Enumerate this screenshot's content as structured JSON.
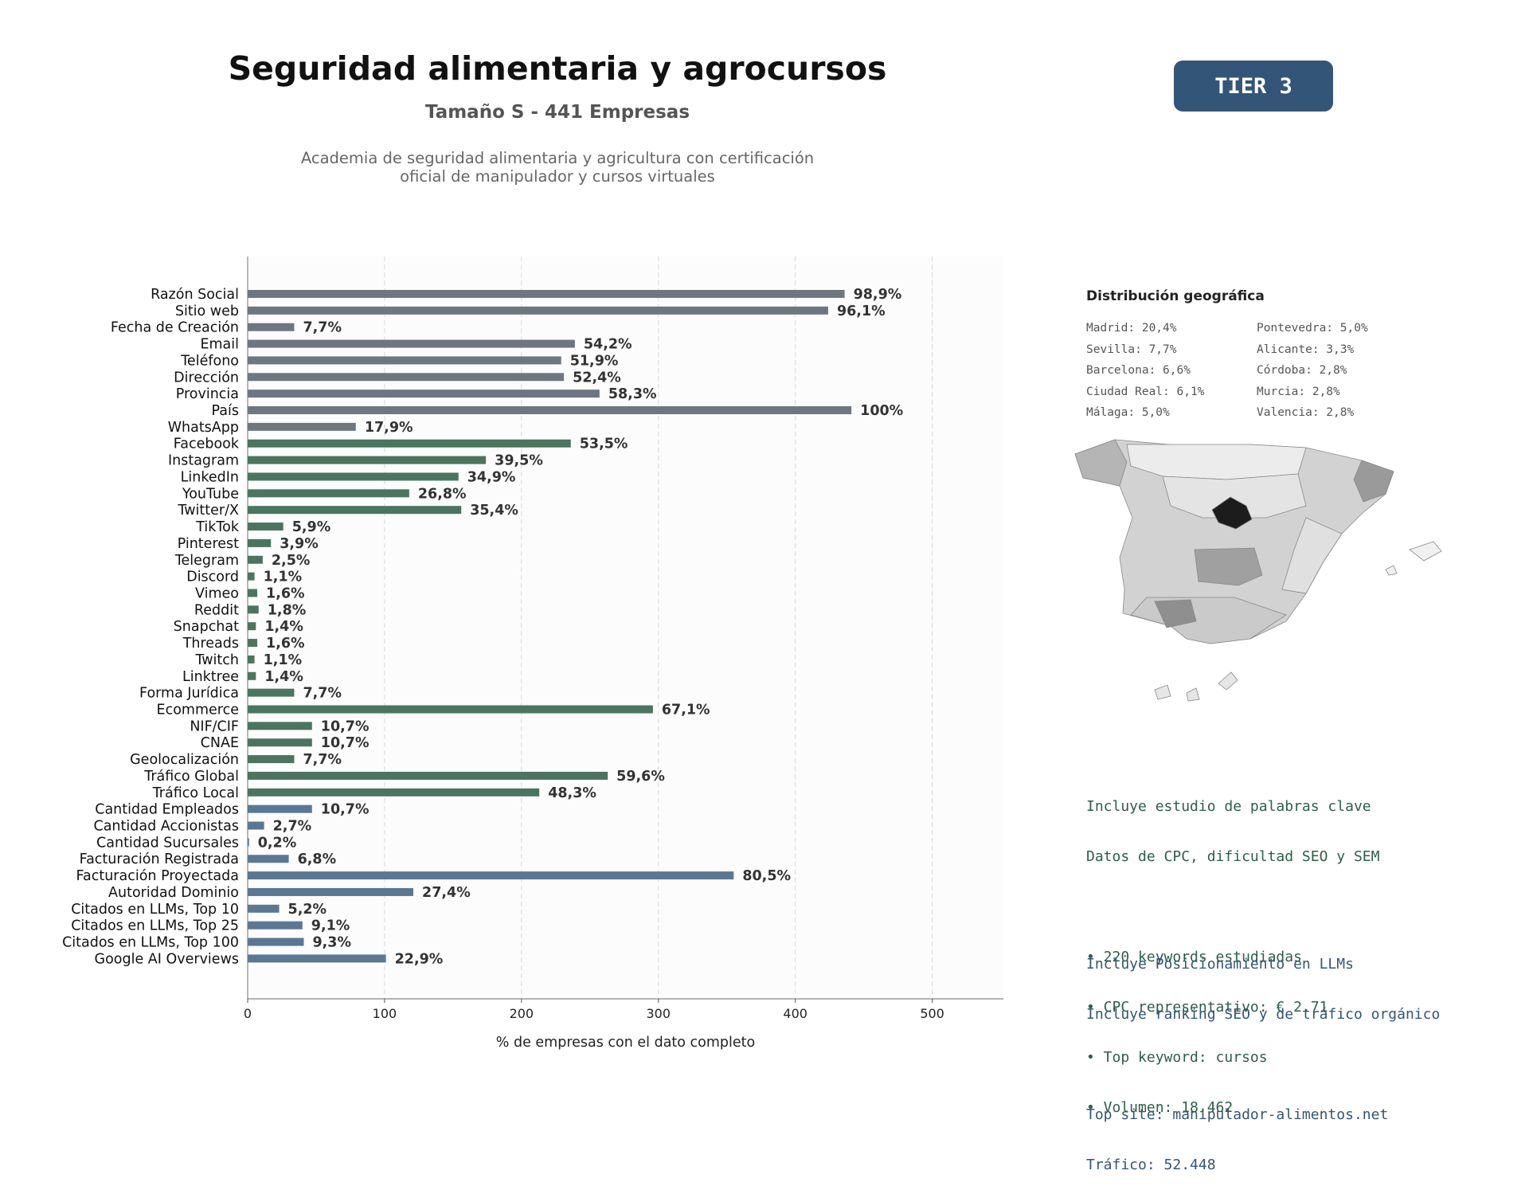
{
  "header": {
    "title": "Seguridad alimentaria y agrocursos",
    "subtitle": "Tamaño S - 441 Empresas",
    "description": "Academia de seguridad alimentaria y agricultura con certificación\noficial de manipulador y cursos virtuales",
    "tier_badge": "TIER 3"
  },
  "chart_data": {
    "type": "bar",
    "orientation": "horizontal",
    "xlabel": "% de empresas con el dato completo",
    "xlim": [
      0,
      552
    ],
    "xticks": [
      0,
      100,
      200,
      300,
      400,
      500
    ],
    "grid": "vertical dashed",
    "categories": [
      "Razón Social",
      "Sitio web",
      "Fecha de Creación",
      "Email",
      "Teléfono",
      "Dirección",
      "Provincia",
      "País",
      "WhatsApp",
      "Facebook",
      "Instagram",
      "LinkedIn",
      "YouTube",
      "Twitter/X",
      "TikTok",
      "Pinterest",
      "Telegram",
      "Discord",
      "Vimeo",
      "Reddit",
      "Snapchat",
      "Threads",
      "Twitch",
      "Linktree",
      "Forma Jurídica",
      "Ecommerce",
      "NIF/CIF",
      "CNAE",
      "Geolocalización",
      "Tráfico Global",
      "Tráfico Local",
      "Cantidad Empleados",
      "Cantidad Accionistas",
      "Cantidad Sucursales",
      "Facturación Registrada",
      "Facturación Proyectada",
      "Autoridad Dominio",
      "Citados en LLMs, Top 10",
      "Citados en LLMs, Top 25",
      "Citados en LLMs, Top 100",
      "Google AI Overviews"
    ],
    "values": [
      436,
      424,
      34,
      239,
      229,
      231,
      257,
      441,
      79,
      236,
      174,
      154,
      118,
      156,
      26,
      17,
      11,
      5,
      7,
      8,
      6,
      7,
      5,
      6,
      34,
      296,
      47,
      47,
      34,
      263,
      213,
      47,
      12,
      1,
      30,
      355,
      121,
      23,
      40,
      41,
      101
    ],
    "labels": [
      "98,9%",
      "96,1%",
      "7,7%",
      "54,2%",
      "51,9%",
      "52,4%",
      "58,3%",
      "100%",
      "17,9%",
      "53,5%",
      "39,5%",
      "34,9%",
      "26,8%",
      "35,4%",
      "5,9%",
      "3,9%",
      "2,5%",
      "1,1%",
      "1,6%",
      "1,8%",
      "1,4%",
      "1,6%",
      "1,1%",
      "1,4%",
      "7,7%",
      "67,1%",
      "10,7%",
      "10,7%",
      "7,7%",
      "59,6%",
      "48,3%",
      "10,7%",
      "2,7%",
      "0,2%",
      "6,8%",
      "80,5%",
      "27,4%",
      "5,2%",
      "9,1%",
      "9,3%",
      "22,9%"
    ],
    "groups": [
      "g",
      "g",
      "g",
      "g",
      "g",
      "g",
      "g",
      "g",
      "g",
      "v",
      "v",
      "v",
      "v",
      "v",
      "v",
      "v",
      "v",
      "v",
      "v",
      "v",
      "v",
      "v",
      "v",
      "v",
      "v",
      "v",
      "v",
      "v",
      "v",
      "v",
      "v",
      "b",
      "b",
      "b",
      "b",
      "b",
      "b",
      "b",
      "b",
      "b",
      "b"
    ],
    "colors": {
      "g": "#6e7780",
      "v": "#4a7561",
      "b": "#5a7894"
    }
  },
  "geo": {
    "title": "Distribución geográfica",
    "left": [
      "Madrid: 20,4%",
      "Sevilla: 7,7%",
      "Barcelona: 6,6%",
      "Ciudad Real: 6,1%",
      "Málaga: 5,0%"
    ],
    "right": [
      "Pontevedra: 5,0%",
      "Alicante: 3,3%",
      "Córdoba: 2,8%",
      "Murcia: 2,8%",
      "Valencia: 2,8%"
    ]
  },
  "keywords": {
    "line1": "Incluye estudio de palabras clave",
    "line2": "Datos de CPC, dificultad SEO y SEM",
    "bullets": [
      "• 220 keywords estudiadas",
      "• CPC representativo: € 2.71",
      "• Top keyword: cursos",
      "• Volumen: 18.462"
    ],
    "color": "#2d5e4a"
  },
  "llm": {
    "line1": "Incluye Posicionamiento en LLMs",
    "line2": "Incluye ranking SEO y de tráfico orgánico",
    "top_site": "Top site: manipulador-alimentos.net",
    "traffic": "Tráfico: 52.448",
    "color": "#335577"
  }
}
